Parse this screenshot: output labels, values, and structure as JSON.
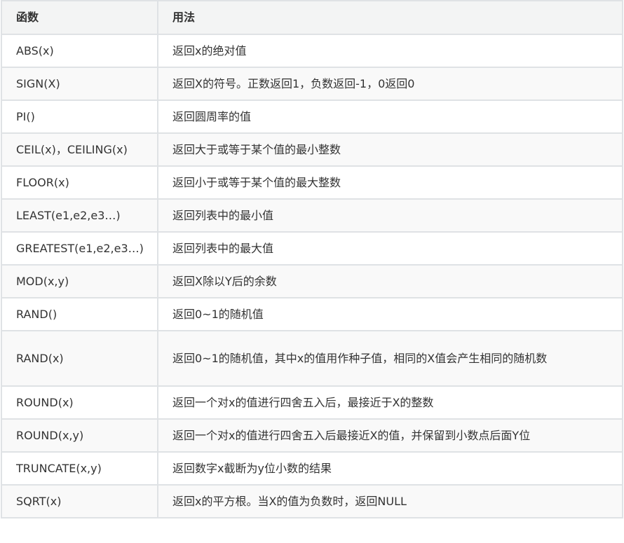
{
  "table": {
    "headers": [
      "函数",
      "用法"
    ],
    "rows": [
      [
        "ABS(x)",
        "返回x的绝对值"
      ],
      [
        "SIGN(X)",
        "返回X的符号。正数返回1，负数返回-1，0返回0"
      ],
      [
        "PI()",
        "返回圆周率的值"
      ],
      [
        "CEIL(x)，CEILING(x)",
        "返回大于或等于某个值的最小整数"
      ],
      [
        "FLOOR(x)",
        "返回小于或等于某个值的最大整数"
      ],
      [
        "LEAST(e1,e2,e3…)",
        "返回列表中的最小值"
      ],
      [
        "GREATEST(e1,e2,e3…)",
        "返回列表中的最大值"
      ],
      [
        "MOD(x,y)",
        "返回X除以Y后的余数"
      ],
      [
        "RAND()",
        "返回0~1的随机值"
      ],
      [
        "RAND(x)",
        "返回0~1的随机值，其中x的值用作种子值，相同的X值会产生相同的随机数"
      ],
      [
        "ROUND(x)",
        "返回一个对x的值进行四舍五入后，最接近于X的整数"
      ],
      [
        "ROUND(x,y)",
        "返回一个对x的值进行四舍五入后最接近X的值，并保留到小数点后面Y位"
      ],
      [
        "TRUNCATE(x,y)",
        "返回数字x截断为y位小数的结果"
      ],
      [
        "SQRT(x)",
        "返回x的平方根。当X的值为负数时，返回NULL"
      ]
    ]
  }
}
